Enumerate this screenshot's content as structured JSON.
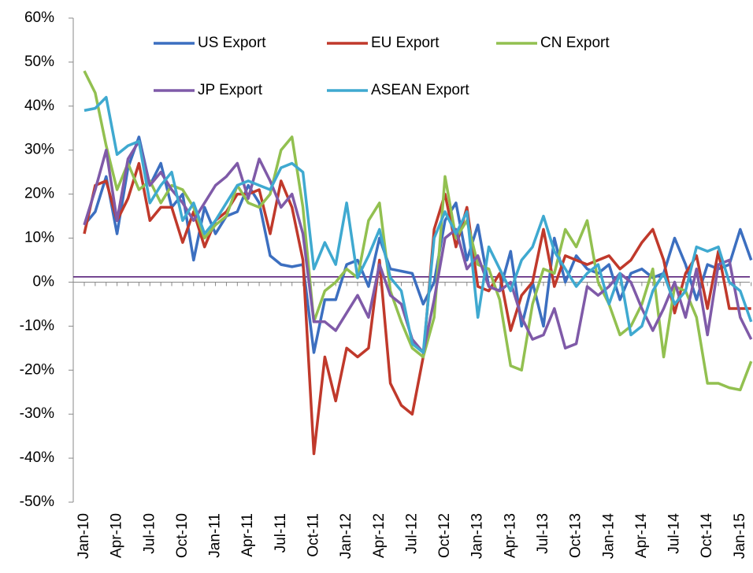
{
  "chart_data": {
    "type": "line",
    "categories": [
      "Jan-10",
      null,
      null,
      "Apr-10",
      null,
      null,
      "Jul-10",
      null,
      null,
      "Oct-10",
      null,
      null,
      "Jan-11",
      null,
      null,
      "Apr-11",
      null,
      null,
      "Jul-11",
      null,
      null,
      "Oct-11",
      null,
      null,
      "Jan-12",
      null,
      null,
      "Apr-12",
      null,
      null,
      "Jul-12",
      null,
      null,
      "Oct-12",
      null,
      null,
      "Jan-13",
      null,
      null,
      "Apr-13",
      null,
      null,
      "Jul-13",
      null,
      null,
      "Oct-13",
      null,
      null,
      "Jan-14",
      null,
      null,
      "Apr-14",
      null,
      null,
      "Jul-14",
      null,
      null,
      "Oct-14",
      null,
      null,
      "Jan-15",
      null
    ],
    "series": [
      {
        "name": "US Export",
        "color": "#3c6fc0",
        "values": [
          13,
          16,
          24,
          11,
          26,
          33,
          22,
          27,
          17,
          20,
          5,
          17,
          11,
          15,
          16,
          22,
          18,
          6,
          4,
          3.5,
          4,
          -16,
          -4,
          -4,
          4,
          5,
          -1,
          10,
          3,
          2.5,
          2,
          -5,
          0,
          14,
          18,
          5,
          13,
          -1,
          -2,
          7,
          -10,
          0,
          -10,
          10,
          0,
          6,
          3,
          2,
          4,
          -4,
          2,
          3,
          1,
          2,
          10,
          4,
          -4,
          4,
          3,
          4,
          12,
          5
        ]
      },
      {
        "name": "EU Export",
        "color": "#c0392b",
        "values": [
          11,
          22,
          23,
          14,
          19,
          27,
          14,
          17,
          17,
          9,
          16,
          8,
          14,
          16,
          20,
          20,
          21,
          11,
          23,
          17,
          5,
          -39,
          -17,
          -27,
          -15,
          -17,
          -15,
          5,
          -23,
          -28,
          -30,
          -17,
          12,
          20,
          8,
          17,
          -1,
          -2,
          2,
          -11,
          -3,
          0,
          12,
          -1,
          6,
          5,
          4,
          5,
          6,
          3,
          5,
          9,
          12,
          5,
          -7,
          2,
          6,
          -6,
          7,
          -6,
          -6,
          -6
        ]
      },
      {
        "name": "CN Export",
        "color": "#92c050",
        "values": [
          48,
          43,
          31,
          21,
          27,
          21,
          23,
          18,
          22,
          21,
          17,
          10,
          13,
          15,
          22,
          18,
          17,
          20,
          30,
          33,
          17,
          -9,
          -2,
          0,
          3,
          1,
          14,
          18,
          -2,
          -9,
          -15,
          -17,
          -8,
          24,
          10,
          14,
          4,
          3,
          -4,
          -19,
          -20,
          -5,
          3,
          2,
          12,
          8,
          14,
          0,
          -5,
          -12,
          -10,
          -5,
          3,
          -17,
          -1,
          -2,
          -8,
          -23,
          -23,
          -24,
          -24.5,
          -18
        ]
      },
      {
        "name": "JP Export",
        "color": "#7f5aa8",
        "values": [
          13,
          21,
          30,
          14,
          28,
          32,
          22,
          25,
          21,
          18,
          14,
          18,
          22,
          24,
          27,
          19,
          28,
          23,
          17,
          20,
          11,
          -9,
          -9,
          -11,
          -7,
          -3,
          -8,
          4,
          -3,
          -5,
          -13,
          -16,
          -4,
          10,
          12,
          3,
          6,
          -1,
          -2,
          0,
          -8,
          -13,
          -12,
          -6,
          -15,
          -14,
          -1,
          -3,
          -1,
          2,
          0,
          -6,
          -11,
          -6,
          0,
          -8,
          3,
          -12,
          4,
          5,
          -8,
          -13
        ]
      },
      {
        "name": "ASEAN Export",
        "color": "#3fa9d0",
        "values": [
          39,
          39.5,
          42,
          29,
          31,
          32,
          18,
          22,
          25,
          14,
          18,
          11,
          14,
          18,
          22,
          23,
          22,
          21,
          26,
          27,
          25,
          3,
          9,
          4,
          18,
          1,
          6,
          12,
          1,
          -2,
          -14,
          -16,
          10,
          16,
          11,
          16,
          -8,
          8,
          3,
          -2,
          5,
          8,
          15,
          7,
          3,
          -1,
          2,
          4,
          -5,
          2,
          -12,
          -10,
          -2,
          2,
          -5,
          -2,
          8,
          7,
          8,
          0,
          -2,
          -9
        ]
      }
    ],
    "ylim": [
      -50,
      60
    ],
    "yticks": [
      {
        "value": -50,
        "label": "-50%"
      },
      {
        "value": -40,
        "label": "-40%"
      },
      {
        "value": -30,
        "label": "-30%"
      },
      {
        "value": -20,
        "label": "-20%"
      },
      {
        "value": -10,
        "label": "-10%"
      },
      {
        "value": 0,
        "label": "0%"
      },
      {
        "value": 10,
        "label": "10%"
      },
      {
        "value": 20,
        "label": "20%"
      },
      {
        "value": 30,
        "label": "30%"
      },
      {
        "value": 40,
        "label": "40%"
      },
      {
        "value": 50,
        "label": "50%"
      },
      {
        "value": 60,
        "label": "60%"
      }
    ],
    "reference_line": {
      "value": 1.2,
      "color": "#4b1070"
    },
    "legend": "top"
  }
}
